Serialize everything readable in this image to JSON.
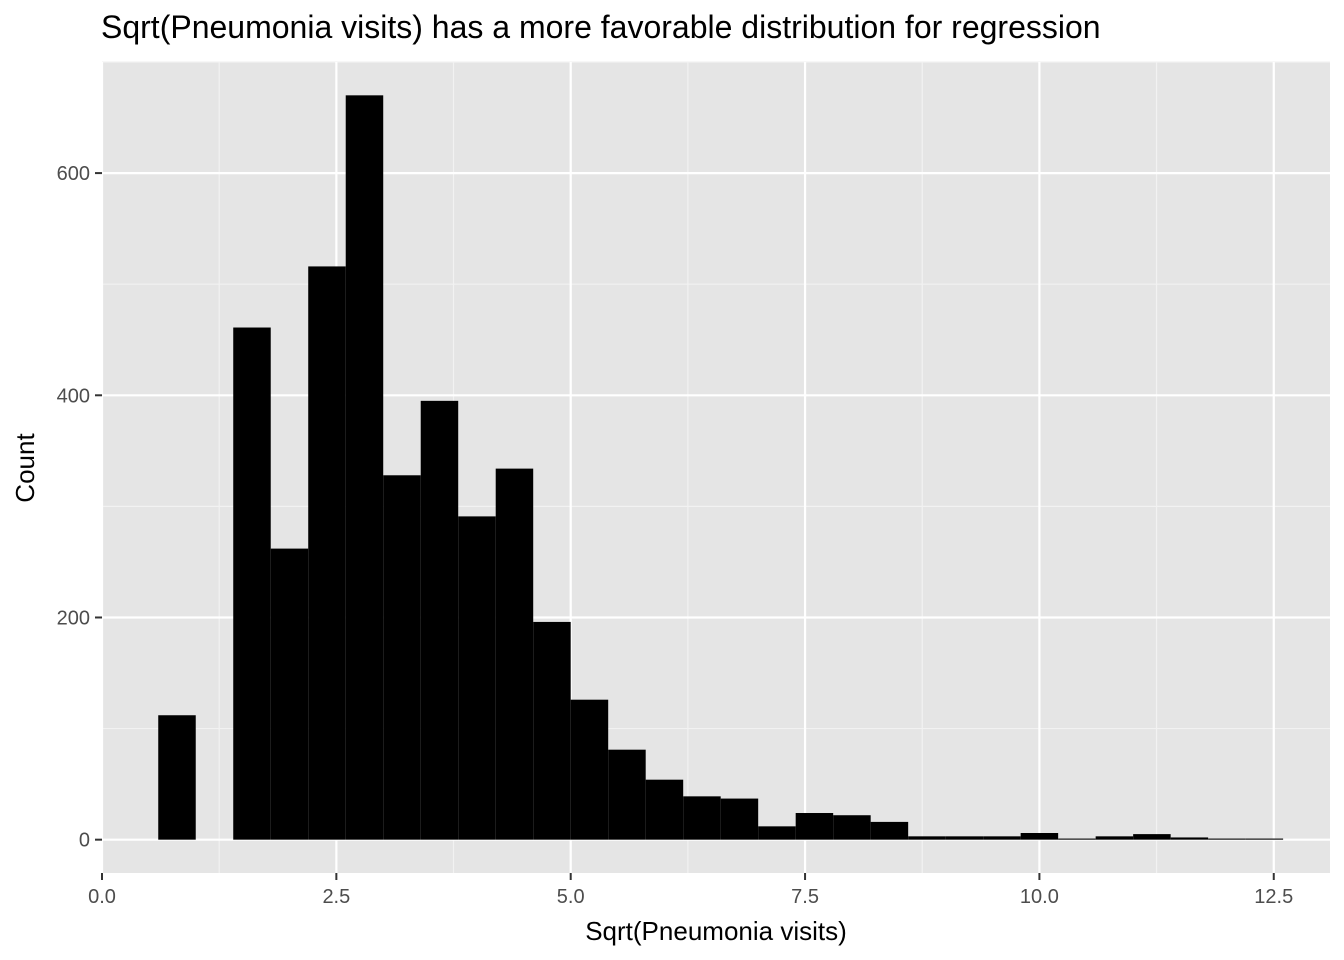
{
  "chart_data": {
    "type": "bar",
    "title": "Sqrt(Pneumonia visits) has a more favorable distribution for regression",
    "xlabel": "Sqrt(Pneumonia visits)",
    "ylabel": "Count",
    "xlim": [
      0,
      13.1
    ],
    "ylim": [
      -30,
      700
    ],
    "x_ticks": [
      0,
      2.5,
      5,
      7.5,
      10,
      12.5
    ],
    "x_tick_labels": [
      "0.0",
      "2.5",
      "5.0",
      "7.5",
      "10.0",
      "12.5"
    ],
    "y_ticks": [
      0,
      200,
      400,
      600
    ],
    "y_tick_labels": [
      "0",
      "200",
      "400",
      "600"
    ],
    "grid": true,
    "bin_width": 0.4,
    "bins": [
      {
        "start": 0.6,
        "end": 1.0,
        "count": 112
      },
      {
        "start": 1.0,
        "end": 1.4,
        "count": 0
      },
      {
        "start": 1.4,
        "end": 1.8,
        "count": 461
      },
      {
        "start": 1.8,
        "end": 2.2,
        "count": 262
      },
      {
        "start": 2.2,
        "end": 2.6,
        "count": 516
      },
      {
        "start": 2.6,
        "end": 3.0,
        "count": 670
      },
      {
        "start": 3.0,
        "end": 3.4,
        "count": 328
      },
      {
        "start": 3.4,
        "end": 3.8,
        "count": 395
      },
      {
        "start": 3.8,
        "end": 4.2,
        "count": 291
      },
      {
        "start": 4.2,
        "end": 4.6,
        "count": 334
      },
      {
        "start": 4.6,
        "end": 5.0,
        "count": 196
      },
      {
        "start": 5.0,
        "end": 5.4,
        "count": 126
      },
      {
        "start": 5.4,
        "end": 5.8,
        "count": 81
      },
      {
        "start": 5.8,
        "end": 6.2,
        "count": 54
      },
      {
        "start": 6.2,
        "end": 6.6,
        "count": 39
      },
      {
        "start": 6.6,
        "end": 7.0,
        "count": 37
      },
      {
        "start": 7.0,
        "end": 7.4,
        "count": 12
      },
      {
        "start": 7.4,
        "end": 7.8,
        "count": 24
      },
      {
        "start": 7.8,
        "end": 8.2,
        "count": 22
      },
      {
        "start": 8.2,
        "end": 8.6,
        "count": 16
      },
      {
        "start": 8.6,
        "end": 9.0,
        "count": 3
      },
      {
        "start": 9.0,
        "end": 9.4,
        "count": 3
      },
      {
        "start": 9.4,
        "end": 9.8,
        "count": 3
      },
      {
        "start": 9.8,
        "end": 10.2,
        "count": 6
      },
      {
        "start": 10.2,
        "end": 10.6,
        "count": 1
      },
      {
        "start": 10.6,
        "end": 11.0,
        "count": 3
      },
      {
        "start": 11.0,
        "end": 11.4,
        "count": 5
      },
      {
        "start": 11.4,
        "end": 11.8,
        "count": 2
      },
      {
        "start": 11.8,
        "end": 12.2,
        "count": 1
      },
      {
        "start": 12.2,
        "end": 12.6,
        "count": 1
      }
    ],
    "colors": {
      "bar": "#000000",
      "panel": "#e5e5e5",
      "grid_major": "#ffffff",
      "grid_minor": "#f2f2f2",
      "tick_label": "#4d4d4d",
      "tick_mark": "#333333"
    }
  }
}
